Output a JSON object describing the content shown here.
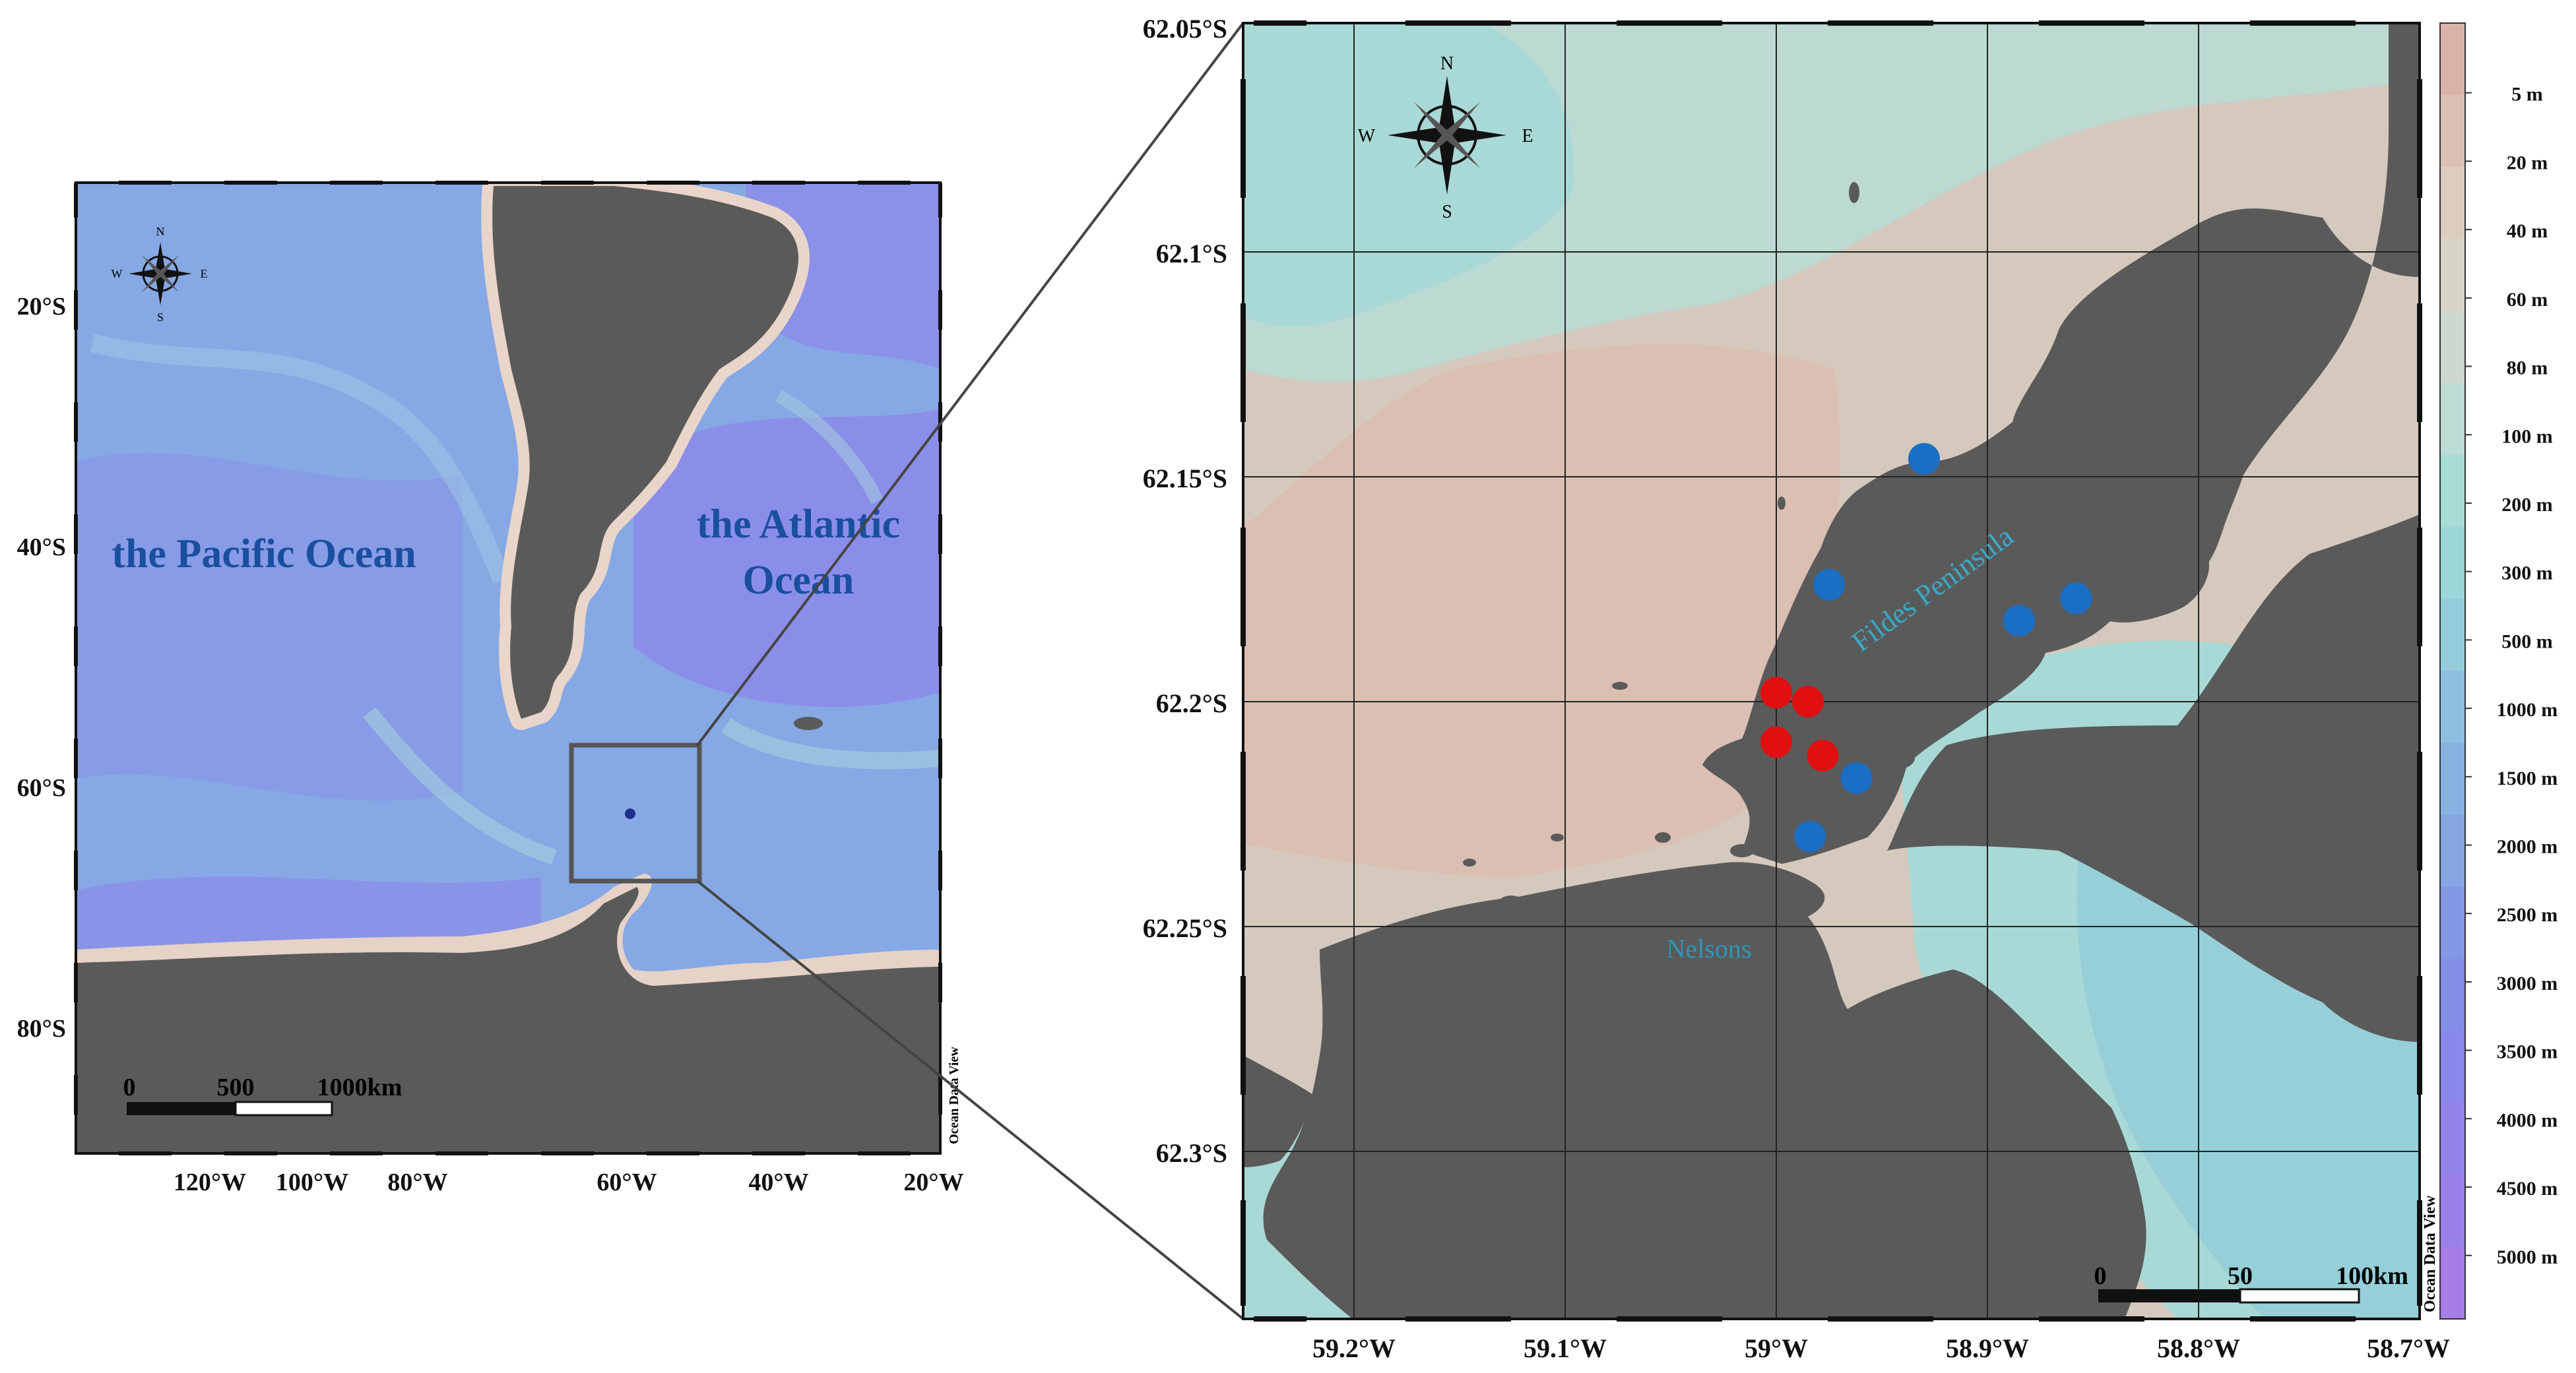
{
  "left_map": {
    "lat_labels": [
      "20°S",
      "40°S",
      "60°S",
      "80°S"
    ],
    "lon_labels": [
      "120°W",
      "100°W",
      "80°W",
      "60°W",
      "40°W",
      "20°W"
    ],
    "ocean_labels": {
      "pacific": "the Pacific Ocean",
      "atlantic_line1": "the Atlantic",
      "atlantic_line2": "Ocean"
    },
    "scale_bar": {
      "zero": "0",
      "mid": "500",
      "end": "1000km"
    },
    "compass": {
      "n": "N",
      "s": "S",
      "e": "E",
      "w": "W"
    },
    "credit": "Ocean Data View"
  },
  "right_map": {
    "lat_labels": [
      "62.05°S",
      "62.1°S",
      "62.15°S",
      "62.2°S",
      "62.25°S",
      "62.3°S"
    ],
    "lon_labels": [
      "59.2°W",
      "59.1°W",
      "59°W",
      "58.9°W",
      "58.8°W",
      "58.7°W"
    ],
    "place_labels": {
      "fildes": "Fildes Peninsula",
      "nelsons": "Nelsons"
    },
    "scale_bar": {
      "zero": "0",
      "mid": "50",
      "end": "100km"
    },
    "compass": {
      "n": "N",
      "s": "S",
      "e": "E",
      "w": "W"
    },
    "credit": "Ocean Data View",
    "stations_blue": [
      {
        "lon": -58.93,
        "lat": -62.146
      },
      {
        "lon": -58.975,
        "lat": -62.174
      },
      {
        "lon": -58.885,
        "lat": -62.182
      },
      {
        "lon": -58.858,
        "lat": -62.177
      },
      {
        "lon": -58.962,
        "lat": -62.217
      },
      {
        "lon": -58.984,
        "lat": -62.23
      }
    ],
    "stations_red": [
      {
        "lon": -59.0,
        "lat": -62.198
      },
      {
        "lon": -58.985,
        "lat": -62.2
      },
      {
        "lon": -59.0,
        "lat": -62.209
      },
      {
        "lon": -58.978,
        "lat": -62.212
      }
    ]
  },
  "legend": {
    "labels": [
      "5 m",
      "20 m",
      "40 m",
      "60 m",
      "80 m",
      "100 m",
      "200 m",
      "300 m",
      "500 m",
      "1000 m",
      "1500 m",
      "2000 m",
      "2500 m",
      "3000 m",
      "3500 m",
      "4000 m",
      "4500 m",
      "5000 m"
    ],
    "colors": [
      "#d9b3a8",
      "#dcc0b3",
      "#dccdc0",
      "#d8d5c8",
      "#cdd8cf",
      "#bcdcd4",
      "#a8dcd6",
      "#9dd6d8",
      "#94ccdc",
      "#8ebfe0",
      "#89b1e2",
      "#86a5e2",
      "#8399e6",
      "#848fe8",
      "#8a88ea",
      "#9384ea",
      "#9c80ea",
      "#a77ee8"
    ]
  }
}
